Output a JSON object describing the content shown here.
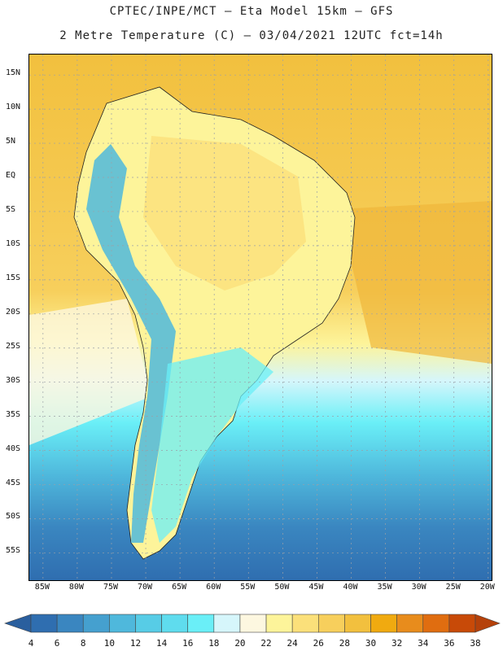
{
  "header": {
    "line1": "CPTEC/INPE/MCT –  Eta Model 15km – GFS",
    "line2": "2 Metre Temperature (C) – 03/04/2021 12UTC fct=14h"
  },
  "axes": {
    "lat_labels": [
      "15N",
      "10N",
      "5N",
      "EQ",
      "5S",
      "10S",
      "15S",
      "20S",
      "25S",
      "30S",
      "35S",
      "40S",
      "45S",
      "50S",
      "55S"
    ],
    "lat_values": [
      15,
      10,
      5,
      0,
      -5,
      -10,
      -15,
      -20,
      -25,
      -30,
      -35,
      -40,
      -45,
      -50,
      -55
    ],
    "lon_labels": [
      "85W",
      "80W",
      "75W",
      "70W",
      "65W",
      "60W",
      "55W",
      "50W",
      "45W",
      "40W",
      "35W",
      "30W",
      "25W",
      "20W"
    ],
    "lon_values": [
      -85,
      -80,
      -75,
      -70,
      -65,
      -60,
      -55,
      -50,
      -45,
      -40,
      -35,
      -30,
      -25,
      -20
    ]
  },
  "colorbar": {
    "labels": [
      "4",
      "6",
      "8",
      "10",
      "12",
      "14",
      "16",
      "18",
      "20",
      "22",
      "24",
      "26",
      "28",
      "30",
      "32",
      "34",
      "36",
      "38"
    ],
    "colors": [
      "#2f6eb0",
      "#3a86c0",
      "#45a0cf",
      "#4fb8dc",
      "#57cce6",
      "#5fdcee",
      "#6aeff7",
      "#d6f6fb",
      "#fdf7e0",
      "#fdf49a",
      "#fbe07a",
      "#f7cf5c",
      "#f2c03e",
      "#f0aa10",
      "#e88c1c",
      "#e06d10",
      "#c84a08"
    ],
    "low_color": "#2a5f9e",
    "high_color": "#b5410a"
  }
}
